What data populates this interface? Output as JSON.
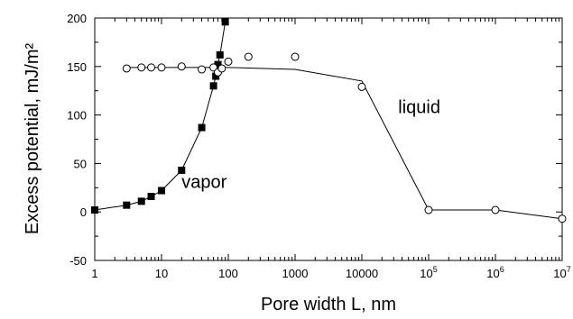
{
  "chart_data": {
    "type": "line",
    "title": "",
    "xlabel": "Pore width L, nm",
    "ylabel": "Excess potential, mJ/m²",
    "xscale": "log",
    "xlim": [
      1,
      10000000
    ],
    "ylim": [
      -50,
      200
    ],
    "grid": false,
    "legend": "none",
    "x_ticks": [
      {
        "value": 1,
        "base": "1",
        "exp": ""
      },
      {
        "value": 10,
        "base": "10",
        "exp": ""
      },
      {
        "value": 100,
        "base": "100",
        "exp": ""
      },
      {
        "value": 1000,
        "base": "1000",
        "exp": ""
      },
      {
        "value": 10000,
        "base": "10000",
        "exp": ""
      },
      {
        "value": 100000,
        "base": "10",
        "exp": "5"
      },
      {
        "value": 1000000,
        "base": "10",
        "exp": "6"
      },
      {
        "value": 10000000,
        "base": "10",
        "exp": "7"
      }
    ],
    "y_ticks": [
      {
        "value": -50,
        "label": "-50"
      },
      {
        "value": 0,
        "label": "0"
      },
      {
        "value": 50,
        "label": "50"
      },
      {
        "value": 100,
        "label": "100"
      },
      {
        "value": 150,
        "label": "150"
      },
      {
        "value": 200,
        "label": "200"
      }
    ],
    "series": [
      {
        "name": "vapor",
        "marker": "filled-square",
        "color": "#000000",
        "x": [
          1,
          3,
          5,
          7,
          10,
          20,
          40,
          60,
          65,
          70,
          75,
          90
        ],
        "y": [
          2,
          7,
          11,
          16,
          22,
          43,
          87,
          130,
          140,
          152,
          162,
          196
        ]
      },
      {
        "name": "liquid",
        "marker": "open-circle",
        "color": "#000000",
        "x": [
          3,
          5,
          7,
          10,
          20,
          40,
          60,
          70,
          80,
          100,
          200,
          1000,
          10000,
          100000,
          1000000,
          10000000
        ],
        "y": [
          148,
          149,
          149,
          149,
          150,
          147,
          149,
          144,
          148,
          155,
          160,
          160,
          129,
          2,
          2,
          -7
        ]
      }
    ],
    "liquid_line": {
      "x": [
        3,
        100,
        1000,
        10000,
        100000,
        1000000,
        10000000
      ],
      "y": [
        149,
        149,
        147,
        135,
        2,
        2,
        -7
      ]
    },
    "annotations": [
      {
        "text": "vapor",
        "x": 20,
        "y": 25
      },
      {
        "text": "liquid",
        "x": 35000,
        "y": 102
      }
    ]
  }
}
